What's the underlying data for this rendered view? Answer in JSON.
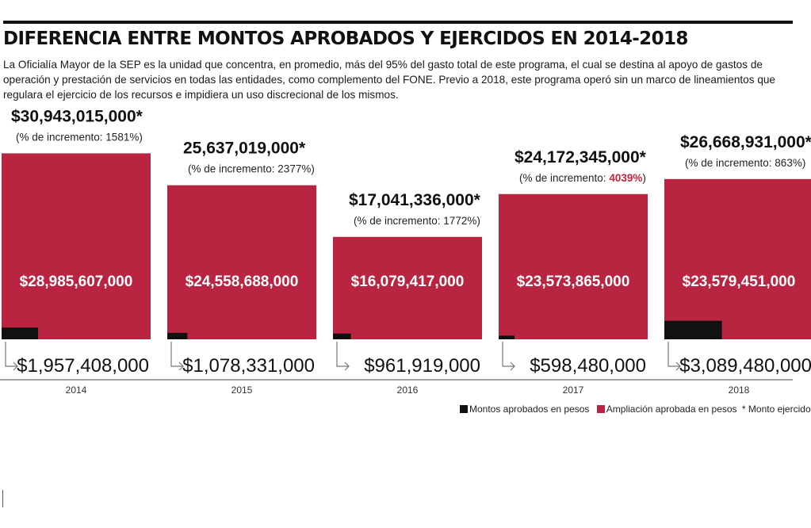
{
  "title": "DIFERENCIA ENTRE MONTOS APROBADOS Y EJERCIDOS EN 2014-2018",
  "intro": "La Oficialía Mayor de la SEP es la unidad que concentra, en promedio, más del 95% del gasto total de este programa, el cual se destina al apoyo de gastos de operación y prestación de servicios en todas las entidades, como complemento del FONE. Previo a 2018, este programa operó sin un marco de lineamientos que regulara el ejercicio de los recursos e impidiera un uso discrecional de los mismos.",
  "colors": {
    "ampliacion": "#b92540",
    "aprobados": "#111111",
    "highlight": "#c8253c"
  },
  "legend": {
    "aprobados": "Montos aprobados en pesos",
    "ampliacion": "Ampliación aprobada en pesos",
    "note": "* Monto ejercido"
  },
  "chart_data": {
    "type": "bar",
    "categories": [
      "2014",
      "2015",
      "2016",
      "2017",
      "2018"
    ],
    "series": [
      {
        "name": "Montos aprobados en pesos",
        "values": [
          1957408000,
          1078331000,
          961919000,
          598480000,
          3089480000
        ]
      },
      {
        "name": "Ampliación aprobada en pesos",
        "values": [
          28985607000,
          24558688000,
          16079417000,
          23573865000,
          23579451000
        ]
      }
    ],
    "stacked": true,
    "ylim": [
      0,
      31000000000
    ],
    "bars": [
      {
        "year": "2014",
        "ejercido_label": "$30,943,015,000*",
        "incremento_label": "(% de incremento: 1581%)",
        "incremento_prefix": "",
        "incremento_value": "",
        "incremento_suffix": "",
        "ampliacion_label": "$28,985,607,000",
        "aprobado_label": "$1,957,408,000"
      },
      {
        "year": "2015",
        "ejercido_label": "25,637,019,000*",
        "incremento_label": "(% de incremento: 2377%)",
        "incremento_prefix": "",
        "incremento_value": "",
        "incremento_suffix": "",
        "ampliacion_label": "$24,558,688,000",
        "aprobado_label": "$1,078,331,000"
      },
      {
        "year": "2016",
        "ejercido_label": "$17,041,336,000*",
        "incremento_label": "(% de incremento: 1772%)",
        "incremento_prefix": "",
        "incremento_value": "",
        "incremento_suffix": "",
        "ampliacion_label": "$16,079,417,000",
        "aprobado_label": "$961,919,000"
      },
      {
        "year": "2017",
        "ejercido_label": "$24,172,345,000*",
        "incremento_label": "",
        "incremento_prefix": "(% de incremento: ",
        "incremento_value": "4039%",
        "incremento_suffix": ")",
        "ampliacion_label": "$23,573,865,000",
        "aprobado_label": "$598,480,000"
      },
      {
        "year": "2018",
        "ejercido_label": "$26,668,931,000*",
        "incremento_label": "(% de incremento: 863%)",
        "incremento_prefix": "",
        "incremento_value": "",
        "incremento_suffix": "",
        "ampliacion_label": "$23,579,451,000",
        "aprobado_label": "$3,089,480,000"
      }
    ]
  }
}
